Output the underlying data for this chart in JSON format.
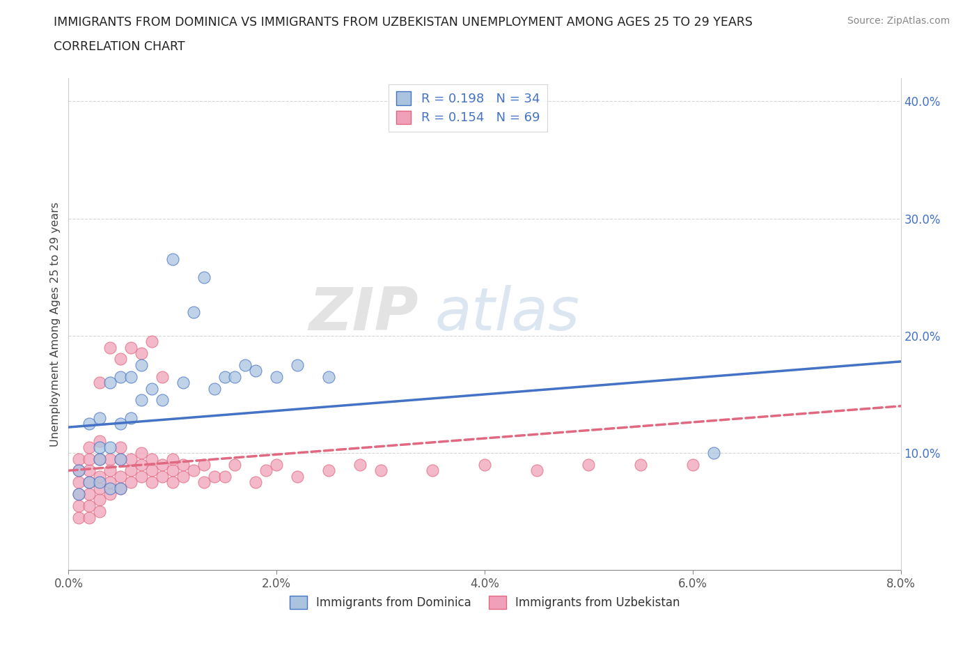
{
  "title_line1": "IMMIGRANTS FROM DOMINICA VS IMMIGRANTS FROM UZBEKISTAN UNEMPLOYMENT AMONG AGES 25 TO 29 YEARS",
  "title_line2": "CORRELATION CHART",
  "source_text": "Source: ZipAtlas.com",
  "ylabel": "Unemployment Among Ages 25 to 29 years",
  "xlabel_dominica": "Immigrants from Dominica",
  "xlabel_uzbekistan": "Immigrants from Uzbekistan",
  "xlim": [
    0.0,
    0.08
  ],
  "ylim": [
    0.0,
    0.42
  ],
  "xticks": [
    0.0,
    0.02,
    0.04,
    0.06,
    0.08
  ],
  "yticks": [
    0.0,
    0.1,
    0.2,
    0.3,
    0.4
  ],
  "xtick_labels": [
    "0.0%",
    "2.0%",
    "4.0%",
    "6.0%",
    "8.0%"
  ],
  "ytick_labels_left": [
    "",
    "",
    "",
    "",
    ""
  ],
  "ytick_labels_right": [
    "",
    "10.0%",
    "20.0%",
    "30.0%",
    "40.0%"
  ],
  "color_dominica": "#aac4e0",
  "color_uzbekistan": "#f0a0b8",
  "color_dominica_line": "#4472c4",
  "color_uzbekistan_line": "#e06880",
  "r_dominica": 0.198,
  "n_dominica": 34,
  "r_uzbekistan": 0.154,
  "n_uzbekistan": 69,
  "legend_text_color": "#4472c4",
  "watermark_zip": "ZIP",
  "watermark_atlas": "atlas",
  "dominica_x": [
    0.001,
    0.001,
    0.002,
    0.002,
    0.003,
    0.003,
    0.003,
    0.003,
    0.004,
    0.004,
    0.004,
    0.005,
    0.005,
    0.005,
    0.005,
    0.006,
    0.006,
    0.007,
    0.007,
    0.008,
    0.009,
    0.01,
    0.011,
    0.012,
    0.013,
    0.014,
    0.015,
    0.016,
    0.017,
    0.018,
    0.02,
    0.022,
    0.025,
    0.062
  ],
  "dominica_y": [
    0.065,
    0.085,
    0.075,
    0.125,
    0.075,
    0.095,
    0.105,
    0.13,
    0.07,
    0.105,
    0.16,
    0.07,
    0.095,
    0.125,
    0.165,
    0.13,
    0.165,
    0.145,
    0.175,
    0.155,
    0.145,
    0.265,
    0.16,
    0.22,
    0.25,
    0.155,
    0.165,
    0.165,
    0.175,
    0.17,
    0.165,
    0.175,
    0.165,
    0.1
  ],
  "uzbekistan_x": [
    0.001,
    0.001,
    0.001,
    0.001,
    0.001,
    0.001,
    0.002,
    0.002,
    0.002,
    0.002,
    0.002,
    0.002,
    0.002,
    0.003,
    0.003,
    0.003,
    0.003,
    0.003,
    0.003,
    0.003,
    0.004,
    0.004,
    0.004,
    0.004,
    0.004,
    0.005,
    0.005,
    0.005,
    0.005,
    0.005,
    0.006,
    0.006,
    0.006,
    0.006,
    0.007,
    0.007,
    0.007,
    0.007,
    0.008,
    0.008,
    0.008,
    0.008,
    0.009,
    0.009,
    0.009,
    0.01,
    0.01,
    0.01,
    0.011,
    0.011,
    0.012,
    0.013,
    0.013,
    0.014,
    0.015,
    0.016,
    0.018,
    0.019,
    0.02,
    0.022,
    0.025,
    0.028,
    0.03,
    0.035,
    0.04,
    0.045,
    0.05,
    0.055,
    0.06
  ],
  "uzbekistan_y": [
    0.045,
    0.055,
    0.065,
    0.075,
    0.085,
    0.095,
    0.045,
    0.055,
    0.065,
    0.075,
    0.085,
    0.095,
    0.105,
    0.05,
    0.06,
    0.07,
    0.08,
    0.095,
    0.11,
    0.16,
    0.065,
    0.075,
    0.085,
    0.095,
    0.19,
    0.07,
    0.08,
    0.095,
    0.105,
    0.18,
    0.075,
    0.085,
    0.095,
    0.19,
    0.08,
    0.09,
    0.1,
    0.185,
    0.075,
    0.085,
    0.095,
    0.195,
    0.08,
    0.09,
    0.165,
    0.075,
    0.085,
    0.095,
    0.08,
    0.09,
    0.085,
    0.075,
    0.09,
    0.08,
    0.08,
    0.09,
    0.075,
    0.085,
    0.09,
    0.08,
    0.085,
    0.09,
    0.085,
    0.085,
    0.09,
    0.085,
    0.09,
    0.09,
    0.09
  ],
  "dominica_trendline_x": [
    0.0,
    0.08
  ],
  "dominica_trendline_y": [
    0.122,
    0.178
  ],
  "uzbekistan_trendline_x": [
    0.0,
    0.08
  ],
  "uzbekistan_trendline_y": [
    0.085,
    0.14
  ]
}
